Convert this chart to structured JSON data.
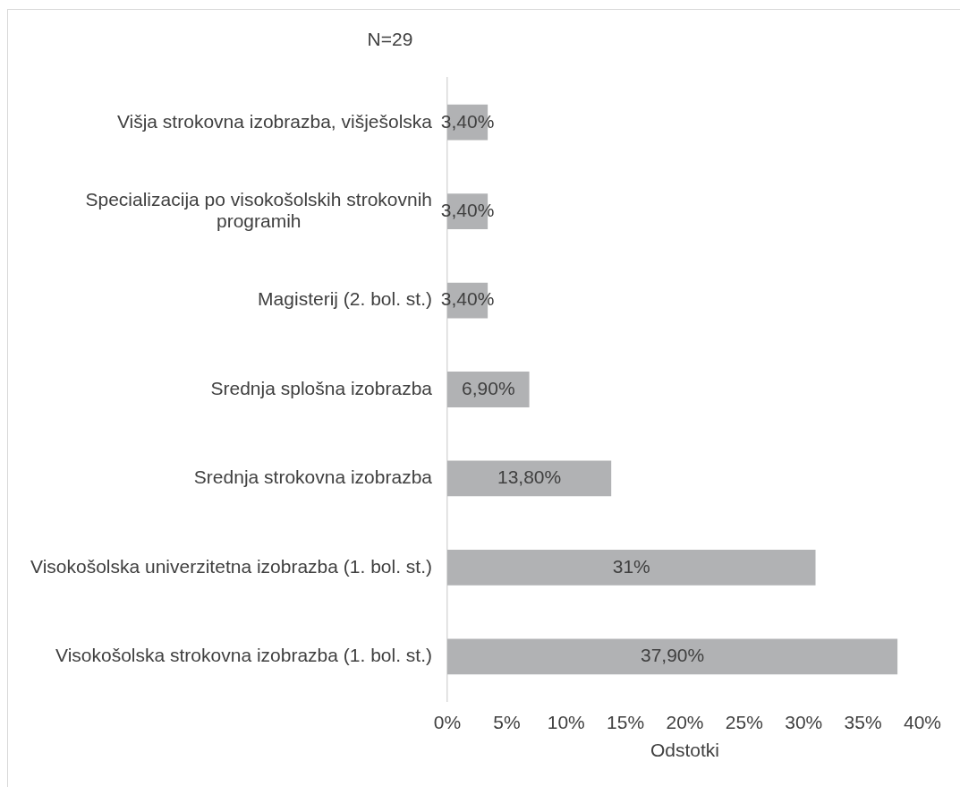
{
  "chart_data": {
    "type": "bar",
    "orientation": "horizontal",
    "title": "N=29",
    "xlabel": "Odstotki",
    "categories": [
      "Višja strokovna izobrazba, višješolska",
      "Specializacija po visokošolskih strokovnih programih",
      "Magisterij (2. bol. st.)",
      "Srednja splošna izobrazba",
      "Srednja strokovna izobrazba",
      "Visokošolska univerzitetna izobrazba (1. bol. st.)",
      "Visokošolska strokovna izobrazba (1. bol. st.)"
    ],
    "values": [
      3.4,
      3.4,
      3.4,
      6.9,
      13.8,
      31,
      37.9
    ],
    "value_labels": [
      "3,40%",
      "3,40%",
      "3,40%",
      "6,90%",
      "13,80%",
      "31%",
      "37,90%"
    ],
    "color": "#b1b2b4",
    "xlim": [
      0,
      40
    ],
    "xticks": [
      {
        "value": 0,
        "label": "0%"
      },
      {
        "value": 5,
        "label": "5%"
      },
      {
        "value": 10,
        "label": "10%"
      },
      {
        "value": 15,
        "label": "15%"
      },
      {
        "value": 20,
        "label": "20%"
      },
      {
        "value": 25,
        "label": "25%"
      },
      {
        "value": 30,
        "label": "30%"
      },
      {
        "value": 35,
        "label": "35%"
      },
      {
        "value": 40,
        "label": "40%"
      }
    ]
  }
}
